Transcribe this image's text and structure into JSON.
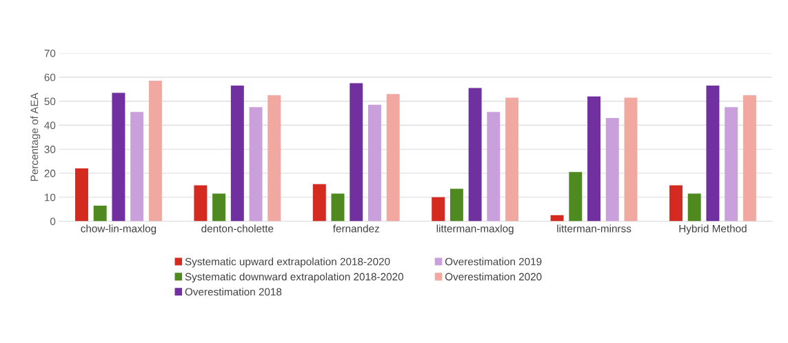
{
  "chart_data": {
    "type": "bar",
    "ylabel": "Percentage of AEA",
    "categories": [
      "chow-lin-maxlog",
      "denton-cholette",
      "fernandez",
      "litterman-maxlog",
      "litterman-minrss",
      "Hybrid Method"
    ],
    "series": [
      {
        "name": "Systematic upward extrapolation 2018-2020",
        "color": "#d42a1f",
        "values": [
          22,
          15,
          15.5,
          10,
          2.5,
          15
        ]
      },
      {
        "name": "Systematic downward extrapolation 2018-2020",
        "color": "#4e8a1f",
        "values": [
          6.5,
          11.5,
          11.5,
          13.5,
          20.5,
          11.5
        ]
      },
      {
        "name": "Overestimation 2018",
        "color": "#7030a0",
        "values": [
          53.5,
          56.5,
          57.5,
          55.5,
          52,
          56.5
        ]
      },
      {
        "name": "Overestimation 2019",
        "color": "#c9a0dc",
        "values": [
          45.5,
          47.5,
          48.5,
          45.5,
          43,
          47.5
        ]
      },
      {
        "name": "Overestimation 2020",
        "color": "#f0a8a0",
        "values": [
          58.5,
          52.5,
          53,
          51.5,
          51.5,
          52.5
        ]
      }
    ],
    "ylim": [
      0,
      70
    ],
    "yticks": [
      0,
      10,
      20,
      30,
      40,
      50,
      60,
      70
    ],
    "grid": "y",
    "legend": "bottom"
  }
}
